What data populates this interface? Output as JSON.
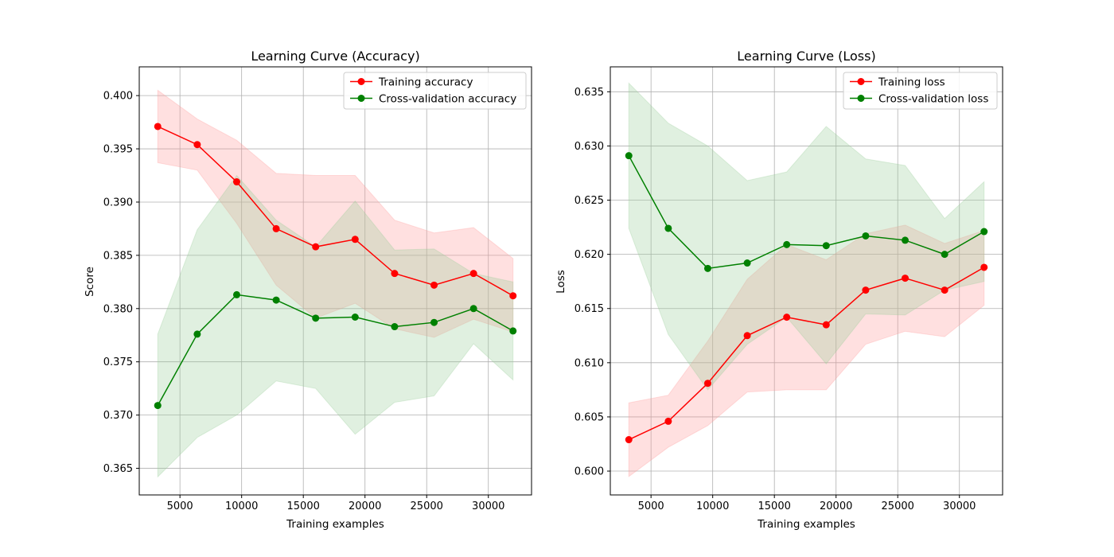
{
  "chart_data": [
    {
      "type": "line",
      "title": "Learning Curve (Accuracy)",
      "xlabel": "Training examples",
      "ylabel": "Score",
      "xlim": [
        1700,
        33500
      ],
      "ylim": [
        0.3625,
        0.4027
      ],
      "xticks": [
        5000,
        10000,
        15000,
        20000,
        25000,
        30000
      ],
      "yticks": [
        0.365,
        0.37,
        0.375,
        0.38,
        0.385,
        0.39,
        0.395,
        0.4
      ],
      "ytick_decimals": 3,
      "grid": true,
      "legend_position": "upper right",
      "x": [
        3200,
        6400,
        9600,
        12800,
        16000,
        19200,
        22400,
        25600,
        28800,
        32000
      ],
      "series": [
        {
          "name": "Training accuracy",
          "color": "#ff0000",
          "fill_color": "#ff9999",
          "values": [
            0.3971,
            0.3954,
            0.3919,
            0.3875,
            0.3858,
            0.3865,
            0.3833,
            0.3822,
            0.3833,
            0.3812
          ],
          "band_lower": [
            0.3937,
            0.393,
            0.388,
            0.3822,
            0.3791,
            0.3805,
            0.3781,
            0.3773,
            0.379,
            0.3778
          ],
          "band_upper": [
            0.4005,
            0.3978,
            0.3958,
            0.3927,
            0.3925,
            0.3925,
            0.3883,
            0.3871,
            0.3876,
            0.3847
          ]
        },
        {
          "name": "Cross-validation accuracy",
          "color": "#008000",
          "fill_color": "#99cc99",
          "values": [
            0.3709,
            0.3776,
            0.3813,
            0.3808,
            0.3791,
            0.3792,
            0.3783,
            0.3787,
            0.38,
            0.3779
          ],
          "band_lower": [
            0.3642,
            0.3679,
            0.37,
            0.3732,
            0.3725,
            0.3682,
            0.3712,
            0.3718,
            0.3767,
            0.3733
          ],
          "band_upper": [
            0.3776,
            0.3874,
            0.3925,
            0.3883,
            0.3858,
            0.3901,
            0.3855,
            0.3856,
            0.3833,
            0.3825
          ]
        }
      ]
    },
    {
      "type": "line",
      "title": "Learning Curve (Loss)",
      "xlabel": "Training examples",
      "ylabel": "Loss",
      "xlim": [
        1700,
        33500
      ],
      "ylim": [
        0.5978,
        0.6373
      ],
      "xticks": [
        5000,
        10000,
        15000,
        20000,
        25000,
        30000
      ],
      "yticks": [
        0.6,
        0.605,
        0.61,
        0.615,
        0.62,
        0.625,
        0.63,
        0.635
      ],
      "ytick_decimals": 3,
      "grid": true,
      "legend_position": "upper right",
      "x": [
        3200,
        6400,
        9600,
        12800,
        16000,
        19200,
        22400,
        25600,
        28800,
        32000
      ],
      "series": [
        {
          "name": "Training loss",
          "color": "#ff0000",
          "fill_color": "#ff9999",
          "values": [
            0.6029,
            0.6046,
            0.6081,
            0.6125,
            0.6142,
            0.6135,
            0.6167,
            0.6178,
            0.6167,
            0.6188
          ],
          "band_lower": [
            0.5995,
            0.6022,
            0.6042,
            0.6073,
            0.6075,
            0.6075,
            0.6117,
            0.6129,
            0.6124,
            0.6153
          ],
          "band_upper": [
            0.6063,
            0.607,
            0.612,
            0.6177,
            0.6209,
            0.6195,
            0.6219,
            0.6227,
            0.621,
            0.6222
          ]
        },
        {
          "name": "Cross-validation loss",
          "color": "#008000",
          "fill_color": "#99cc99",
          "values": [
            0.6291,
            0.6224,
            0.6187,
            0.6192,
            0.6209,
            0.6208,
            0.6217,
            0.6213,
            0.62,
            0.6221
          ],
          "band_lower": [
            0.6224,
            0.6126,
            0.6075,
            0.6117,
            0.6142,
            0.6099,
            0.6145,
            0.6144,
            0.6167,
            0.6175
          ],
          "band_upper": [
            0.6358,
            0.6321,
            0.63,
            0.6268,
            0.6276,
            0.6318,
            0.6288,
            0.6282,
            0.6233,
            0.6267
          ]
        }
      ]
    }
  ]
}
